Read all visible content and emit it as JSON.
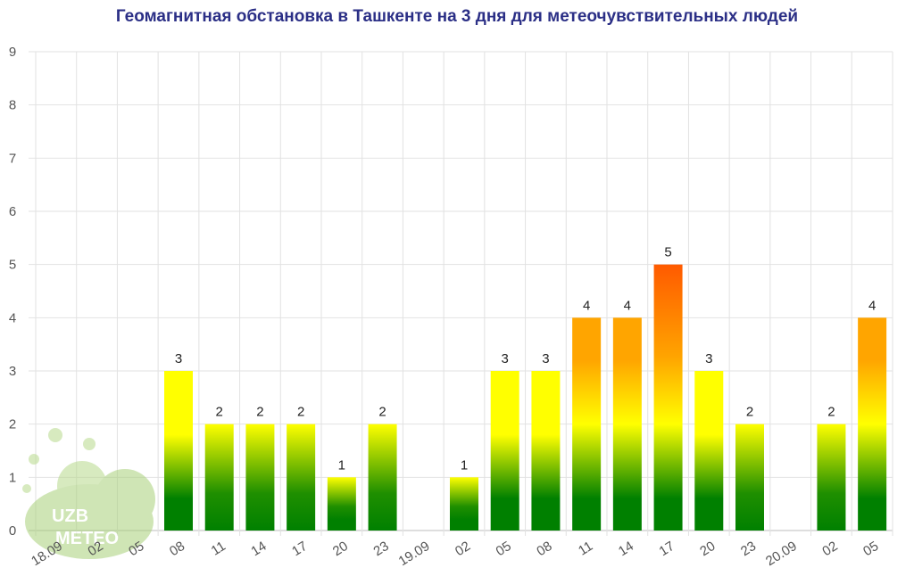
{
  "title": "Геомагнитная обстановка в Ташкенте на 3 дня для метеочувствительных людей",
  "watermark": {
    "line1": "UZB",
    "line2": "METEO",
    "icon": "sun-cloud-logo"
  },
  "colors": {
    "bottom": "#008000",
    "mid": "#1f8f00",
    "yellow": "#ffff00",
    "orange": "#ffa500",
    "top": "#ff5a00"
  },
  "chart_data": {
    "type": "bar",
    "title": "Геомагнитная обстановка в Ташкенте на 3 дня для метеочувствительных людей",
    "xlabel": "",
    "ylabel": "",
    "ylim": [
      0,
      9
    ],
    "yticks": [
      "0",
      "1",
      "2",
      "3",
      "4",
      "5",
      "6",
      "7",
      "8",
      "9"
    ],
    "grid": true,
    "categories": [
      "18.09",
      "02",
      "05",
      "08",
      "11",
      "14",
      "17",
      "20",
      "23",
      "19.09",
      "02",
      "05",
      "08",
      "11",
      "14",
      "17",
      "20",
      "23",
      "20.09",
      "02",
      "05"
    ],
    "values": [
      null,
      null,
      null,
      3,
      2,
      2,
      2,
      1,
      2,
      null,
      1,
      3,
      3,
      4,
      4,
      5,
      3,
      2,
      null,
      2,
      4
    ]
  }
}
